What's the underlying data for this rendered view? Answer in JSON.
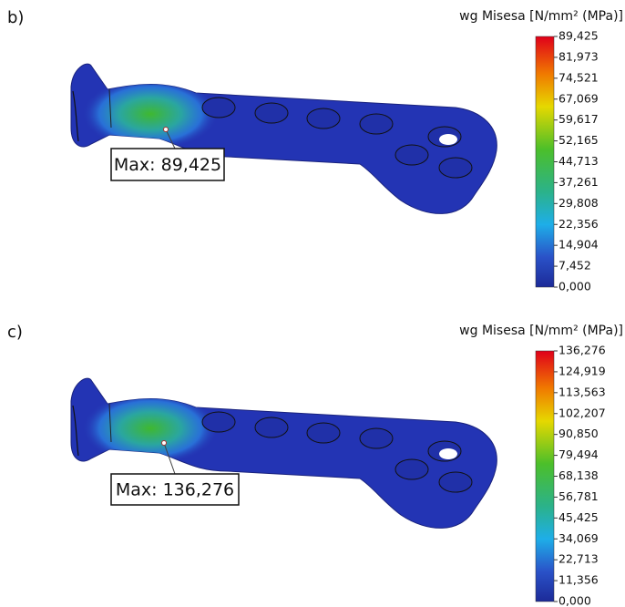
{
  "panels": [
    {
      "label": "b)",
      "legend": {
        "title": "wg Misesa [N/mm² (MPa)]",
        "ticks": [
          "89,425",
          "81,973",
          "74,521",
          "67,069",
          "59,617",
          "52,165",
          "44,713",
          "37,261",
          "29,808",
          "22,356",
          "14,904",
          "7,452",
          "0,000"
        ]
      },
      "max_label": "Max: 89,425"
    },
    {
      "label": "c)",
      "legend": {
        "title": "wg Misesa [N/mm² (MPa)]",
        "ticks": [
          "136,276",
          "124,919",
          "113,563",
          "102,207",
          "90,850",
          "79,494",
          "68,138",
          "56,781",
          "45,425",
          "34,069",
          "22,713",
          "11,356",
          "0,000"
        ]
      },
      "max_label": "Max: 136,276"
    }
  ]
}
